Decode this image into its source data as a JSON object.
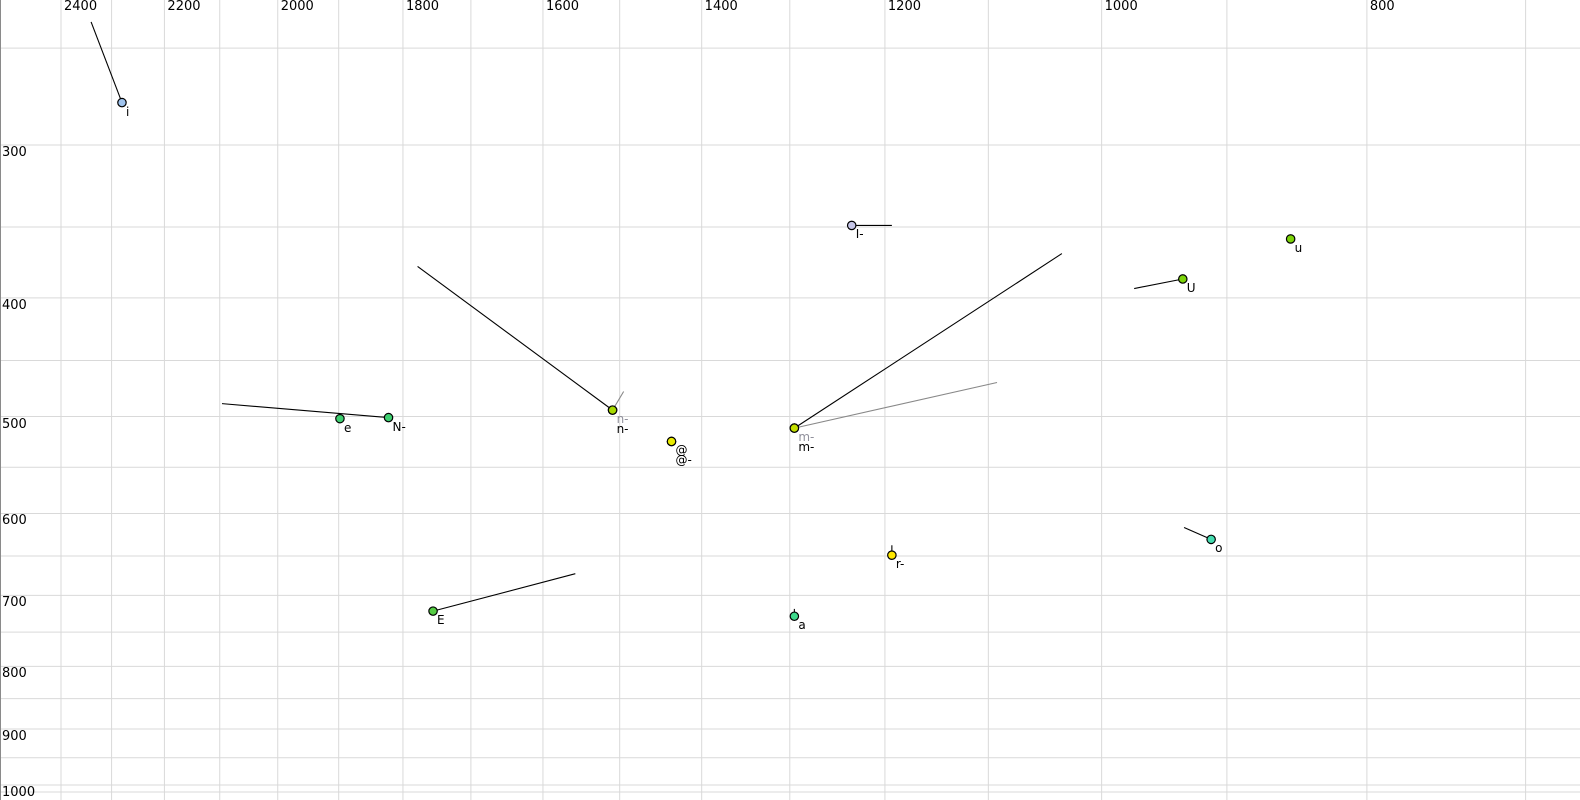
{
  "chart_data": {
    "type": "scatter",
    "title": "",
    "description": "Vowel formant plot: F2 (Hz) on reversed log x-axis along top, F1 (Hz) on log y-axis at left, light gray grid, colored vowel tokens with text labels and trajectory tail lines",
    "grid_color": "#d9d9d9",
    "background_color": "#ffffff",
    "axes": {
      "x": {
        "position": "top",
        "reversed": true,
        "scale": "log",
        "unit": "Hz",
        "labeled_ticks": [
          2400,
          2200,
          2000,
          1800,
          1600,
          1400,
          1200,
          1000,
          800
        ],
        "gridlines": [
          2400,
          2300,
          2200,
          2100,
          2000,
          1900,
          1800,
          1700,
          1600,
          1500,
          1400,
          1300,
          1200,
          1100,
          1000,
          900,
          800,
          700
        ],
        "visible_range": [
          2527,
          669
        ]
      },
      "y": {
        "position": "left",
        "increases_downward": true,
        "scale": "log",
        "unit": "Hz",
        "labeled_ticks": [
          300,
          400,
          500,
          600,
          700,
          800,
          900,
          1000
        ],
        "gridlines": [
          250,
          300,
          350,
          400,
          450,
          500,
          550,
          600,
          650,
          700,
          750,
          800,
          850,
          900,
          950,
          1000
        ],
        "visible_range": [
          228,
          1015
        ]
      }
    },
    "points": [
      {
        "id": "i",
        "label": "i",
        "f2": 2280,
        "f1": 277,
        "fill": "#a0c4ee",
        "label_color": "#000000",
        "stack": 0,
        "tail": {
          "f2": 2340,
          "f1": 238,
          "color": "#000000"
        }
      },
      {
        "id": "I",
        "label": "I-",
        "f2": 1234,
        "f1": 349,
        "fill": "#c6c6e8",
        "label_color": "#000000",
        "stack": 0,
        "tail": {
          "f2": 1193,
          "f1": 349,
          "color": "#000000"
        }
      },
      {
        "id": "u",
        "label": "u",
        "f2": 853,
        "f1": 358,
        "fill": "#7cd40a",
        "label_color": "#000000",
        "stack": 0
      },
      {
        "id": "U",
        "label": "U",
        "f2": 934,
        "f1": 386,
        "fill": "#7cd40a",
        "label_color": "#000000",
        "stack": 0,
        "tail": {
          "f2": 973,
          "f1": 393,
          "color": "#000000"
        }
      },
      {
        "id": "n-gray",
        "label": "n-",
        "f2": 1509,
        "f1": 494,
        "fill": "#a6d900",
        "label_color": "#90909c",
        "stack": 0,
        "tail": {
          "f2": 1495,
          "f1": 477,
          "color": "#888888"
        }
      },
      {
        "id": "n-black",
        "label": "n-",
        "f2": 1509,
        "f1": 494,
        "fill": "#a6d900",
        "label_color": "#000000",
        "stack": 1,
        "tail": {
          "f2": 1778,
          "f1": 377,
          "color": "#000000"
        }
      },
      {
        "id": "e",
        "label": "e",
        "f2": 1898,
        "f1": 502,
        "fill": "#3ecf70",
        "label_color": "#000000",
        "stack": 0
      },
      {
        "id": "N",
        "label": "N-",
        "f2": 1822,
        "f1": 501,
        "fill": "#3ecf70",
        "label_color": "#000000",
        "stack": 0,
        "tail": {
          "f2": 2096,
          "f1": 488,
          "color": "#000000"
        }
      },
      {
        "id": "schwa",
        "label": "@",
        "f2": 1436,
        "f1": 524,
        "fill": "#e8ea00",
        "label_color": "#000000",
        "stack": 0
      },
      {
        "id": "schwa-r",
        "label": "@-",
        "f2": 1436,
        "f1": 524,
        "fill": "#e8ea00",
        "label_color": "#000000",
        "stack": 1
      },
      {
        "id": "m-gray",
        "label": "m-",
        "f2": 1295,
        "f1": 511,
        "fill": "#c4e000",
        "label_color": "#90909c",
        "stack": 0,
        "tail": {
          "f2": 1092,
          "f1": 469,
          "color": "#888888"
        }
      },
      {
        "id": "m-black",
        "label": "m-",
        "f2": 1295,
        "f1": 511,
        "fill": "#c4e000",
        "label_color": "#000000",
        "stack": 1,
        "tail": {
          "f2": 1034,
          "f1": 368,
          "color": "#000000"
        }
      },
      {
        "id": "r",
        "label": "r-",
        "f2": 1193,
        "f1": 649,
        "fill": "#ffe800",
        "label_color": "#000000",
        "stack": 0,
        "tail": {
          "f2": 1193,
          "f1": 637,
          "color": "#000000"
        }
      },
      {
        "id": "o",
        "label": "o",
        "f2": 912,
        "f1": 630,
        "fill": "#45dcb0",
        "label_color": "#000000",
        "stack": 0,
        "tail": {
          "f2": 933,
          "f1": 616,
          "color": "#000000"
        }
      },
      {
        "id": "a",
        "label": "a",
        "f2": 1295,
        "f1": 728,
        "fill": "#3eda8c",
        "label_color": "#000000",
        "stack": 0,
        "tail": {
          "f2": 1295,
          "f1": 718,
          "color": "#000000"
        }
      },
      {
        "id": "E",
        "label": "E",
        "f2": 1755,
        "f1": 721,
        "fill": "#55cc44",
        "label_color": "#000000",
        "stack": 0,
        "tail": {
          "f2": 1557,
          "f1": 672,
          "color": "#000000"
        }
      }
    ]
  }
}
